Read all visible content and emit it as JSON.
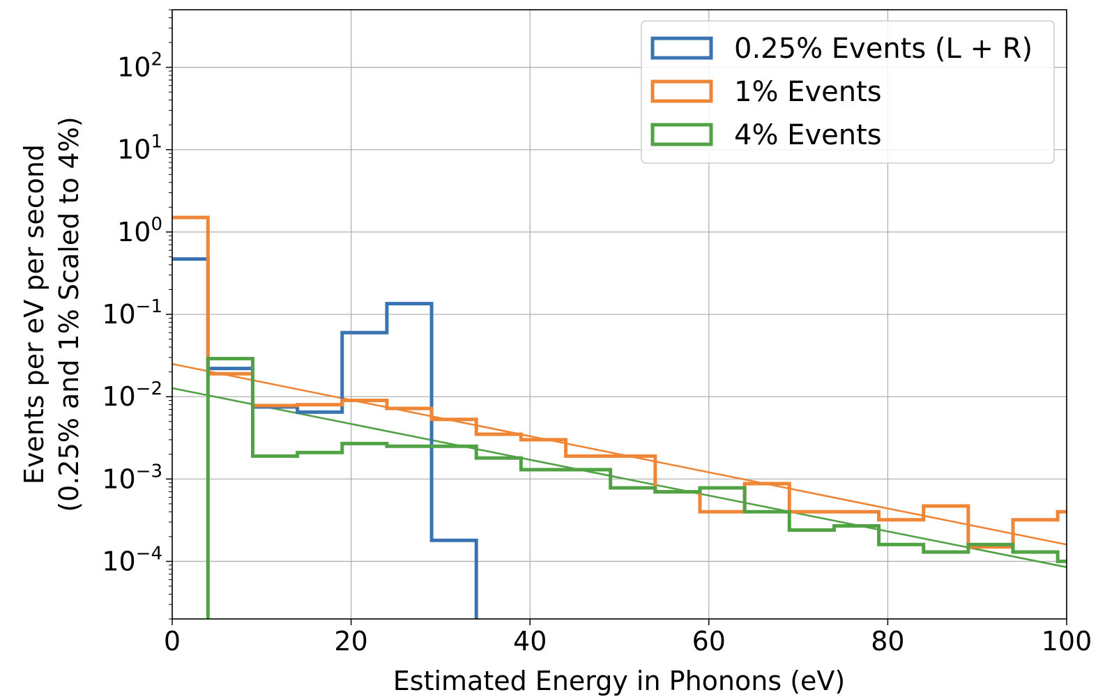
{
  "chart_data": {
    "type": "line",
    "title": "",
    "xlabel": "Estimated Energy in Phonons (eV)",
    "ylabel_line1": "Events per eV per second",
    "ylabel_line2": "(0.25% and 1% Scaled to 4%)",
    "xlim": [
      0,
      100
    ],
    "ylim": [
      2e-05,
      500
    ],
    "yscale": "log",
    "grid": true,
    "legend_position": "top-right",
    "x_ticks": [
      0,
      20,
      40,
      60,
      80,
      100
    ],
    "x_tick_labels": [
      "0",
      "20",
      "40",
      "60",
      "80",
      "100"
    ],
    "y_ticks": [
      0.0001,
      0.001,
      0.01,
      0.1,
      1,
      10,
      100
    ],
    "y_tick_bases": [
      "10",
      "10",
      "10",
      "10",
      "10",
      "10",
      "10"
    ],
    "y_tick_exponents": [
      "−4",
      "−3",
      "−2",
      "−1",
      "0",
      "1",
      "2"
    ],
    "bin_edges": [
      0,
      4,
      9,
      14,
      19,
      24,
      29,
      34,
      39,
      44,
      49,
      54,
      59,
      64,
      69,
      74,
      79,
      84,
      89,
      94,
      99,
      100
    ],
    "series": [
      {
        "name": "0.25% Events (L + R)",
        "color": "#3a73b1",
        "kind": "step",
        "values": [
          0.47,
          0.022,
          0.0075,
          0.0065,
          0.06,
          0.135,
          0.00018,
          0,
          0,
          0,
          0,
          0,
          0,
          0,
          0,
          0,
          0,
          0,
          0,
          0,
          0
        ]
      },
      {
        "name": "1% Events",
        "color": "#ef8636",
        "kind": "step",
        "values": [
          1.5,
          0.019,
          0.0078,
          0.008,
          0.009,
          0.0072,
          0.0053,
          0.0035,
          0.003,
          0.0019,
          0.0019,
          0.0007,
          0.0004,
          0.00088,
          0.0004,
          0.0004,
          0.00032,
          0.00047,
          0.00015,
          0.00032,
          0.0004
        ]
      },
      {
        "name": "4% Events",
        "color": "#50a245",
        "kind": "step",
        "values": [
          0,
          0.029,
          0.0019,
          0.0021,
          0.0027,
          0.0025,
          0.0025,
          0.0018,
          0.0013,
          0.0013,
          0.00078,
          0.0007,
          0.00078,
          0.0004,
          0.00024,
          0.00027,
          0.00016,
          0.00013,
          0.00016,
          0.00013,
          0.0001
        ]
      }
    ],
    "fit_lines": [
      {
        "color": "#ef8636",
        "x": [
          0,
          100
        ],
        "y": [
          0.025,
          0.00016
        ]
      },
      {
        "color": "#50a245",
        "x": [
          0,
          100
        ],
        "y": [
          0.0127,
          8.5e-05
        ]
      }
    ]
  }
}
